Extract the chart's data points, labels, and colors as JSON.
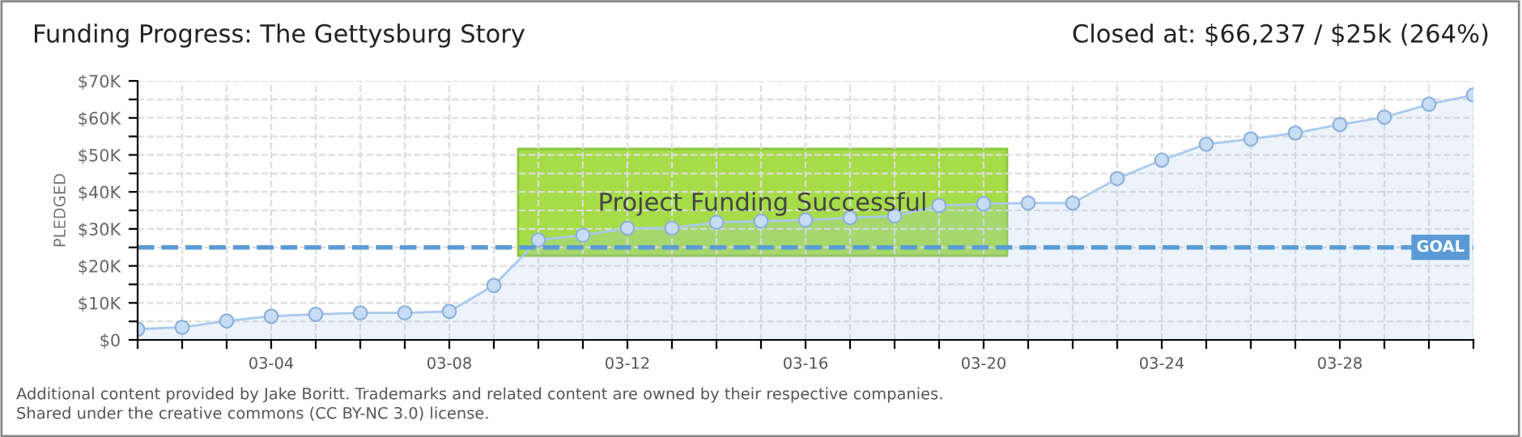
{
  "chart_data": {
    "type": "area",
    "title": "Funding Progress: The Gettysburg Story",
    "subtitle": "Closed at: $66,237 / $25k (264%)",
    "ylabel": "PLEDGED",
    "categories": [
      null,
      null,
      null,
      "03-04",
      null,
      null,
      null,
      "03-08",
      null,
      null,
      null,
      "03-12",
      null,
      null,
      null,
      "03-16",
      null,
      null,
      null,
      "03-20",
      null,
      null,
      null,
      "03-24",
      null,
      null,
      null,
      "03-28",
      null,
      null,
      null
    ],
    "series": [
      {
        "color": "#a9c9ee",
        "values": [
          2900,
          3400,
          5100,
          6400,
          6900,
          7300,
          7300,
          7700,
          14700,
          27000,
          28300,
          30200,
          30200,
          31800,
          32100,
          32400,
          33000,
          33500,
          36300,
          36800,
          37000,
          37000,
          43600,
          48600,
          52900,
          54300,
          55900,
          58200,
          60200,
          63700,
          66200
        ]
      }
    ],
    "ylim": [
      0,
      70000
    ],
    "yticks": [
      {
        "value": 0,
        "label": "$0"
      },
      {
        "value": 5000,
        "label": null
      },
      {
        "value": 10000,
        "label": "$10K"
      },
      {
        "value": 15000,
        "label": null
      },
      {
        "value": 20000,
        "label": "$20K"
      },
      {
        "value": 25000,
        "label": null
      },
      {
        "value": 30000,
        "label": "$30K"
      },
      {
        "value": 35000,
        "label": null
      },
      {
        "value": 40000,
        "label": "$40K"
      },
      {
        "value": 45000,
        "label": null
      },
      {
        "value": 50000,
        "label": "$50K"
      },
      {
        "value": 55000,
        "label": null
      },
      {
        "value": 60000,
        "label": "$60K"
      },
      {
        "value": 65000,
        "label": null
      },
      {
        "value": 70000,
        "label": "$70K"
      }
    ],
    "ref_lines": [
      {
        "axis": "y",
        "value": 25000,
        "label": "GOAL",
        "color": "#5b9bd5",
        "line_style": "dashed"
      }
    ],
    "annotations": [
      "Project Funding Successful",
      "Additional content provided by Jake Boritt. Trademarks and related content are owned by their respective companies.",
      "Shared under the creative commons (CC BY-NC 3.0) license."
    ],
    "grid": true,
    "marker": "circle",
    "line_style": "solid"
  }
}
